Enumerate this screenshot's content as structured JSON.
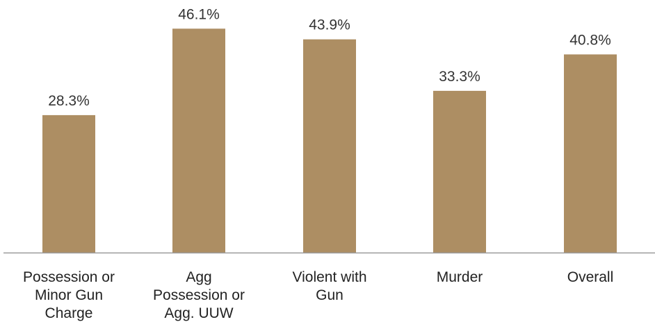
{
  "chart_data": {
    "type": "bar",
    "categories": [
      [
        "Possession or",
        "Minor Gun",
        "Charge"
      ],
      [
        "Agg",
        "Possession or",
        "Agg. UUW"
      ],
      [
        "Violent with",
        "Gun"
      ],
      [
        "Murder"
      ],
      [
        "Overall"
      ]
    ],
    "values": [
      28.3,
      46.1,
      43.9,
      33.3,
      40.8
    ],
    "value_labels": [
      "28.3%",
      "46.1%",
      "43.9%",
      "33.3%",
      "40.8%"
    ],
    "ylim": [
      0,
      50
    ],
    "grid": false,
    "legend": "none",
    "bar_color": "#AD8E63",
    "axis_color": "#9A9A9A"
  }
}
